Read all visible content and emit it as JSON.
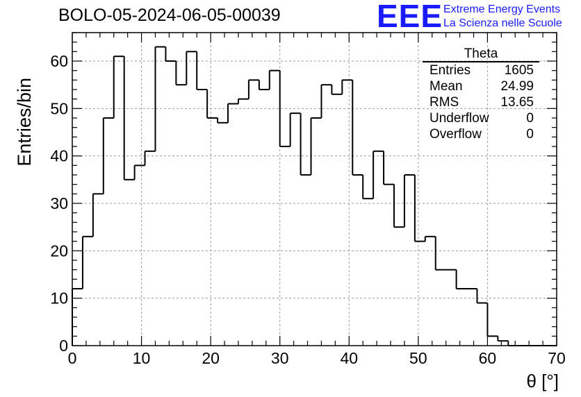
{
  "header": {
    "run_title": "BOLO-05-2024-06-05-00039",
    "logo_text": "EEE",
    "logo_line1": "Extreme Energy Events",
    "logo_line2": "La Scienza nelle Scuole"
  },
  "stats_box": {
    "name": "Theta",
    "rows": [
      {
        "label": "Entries",
        "value": "1605"
      },
      {
        "label": "Mean",
        "value": "24.99"
      },
      {
        "label": "RMS",
        "value": "13.65"
      },
      {
        "label": "Underflow",
        "value": "0"
      },
      {
        "label": "Overflow",
        "value": "0"
      }
    ]
  },
  "colors": {
    "logo": "#1a1aff",
    "line": "#000000",
    "grid": "#9a9a9a"
  },
  "chart_data": {
    "type": "histogram",
    "title": "BOLO-05-2024-06-05-00039",
    "xlabel": "θ [°]",
    "ylabel": "Entries/bin",
    "xlim": [
      0,
      70
    ],
    "ylim": [
      0,
      66
    ],
    "bin_width": 1.5,
    "x_ticks": [
      0,
      10,
      20,
      30,
      40,
      50,
      60,
      70
    ],
    "y_ticks": [
      0,
      10,
      20,
      30,
      40,
      50,
      60
    ],
    "grid": true,
    "bin_edges_start": 0,
    "values": [
      12,
      23,
      32,
      48,
      61,
      35,
      38,
      41,
      63,
      60,
      55,
      62,
      54,
      48,
      47,
      51,
      52,
      56,
      54,
      58,
      42,
      49,
      36,
      48,
      55,
      53,
      56,
      36,
      31,
      41,
      34,
      25,
      36,
      22,
      23,
      16,
      16,
      12,
      12,
      9,
      2,
      1,
      0,
      0,
      0,
      0,
      0
    ]
  }
}
